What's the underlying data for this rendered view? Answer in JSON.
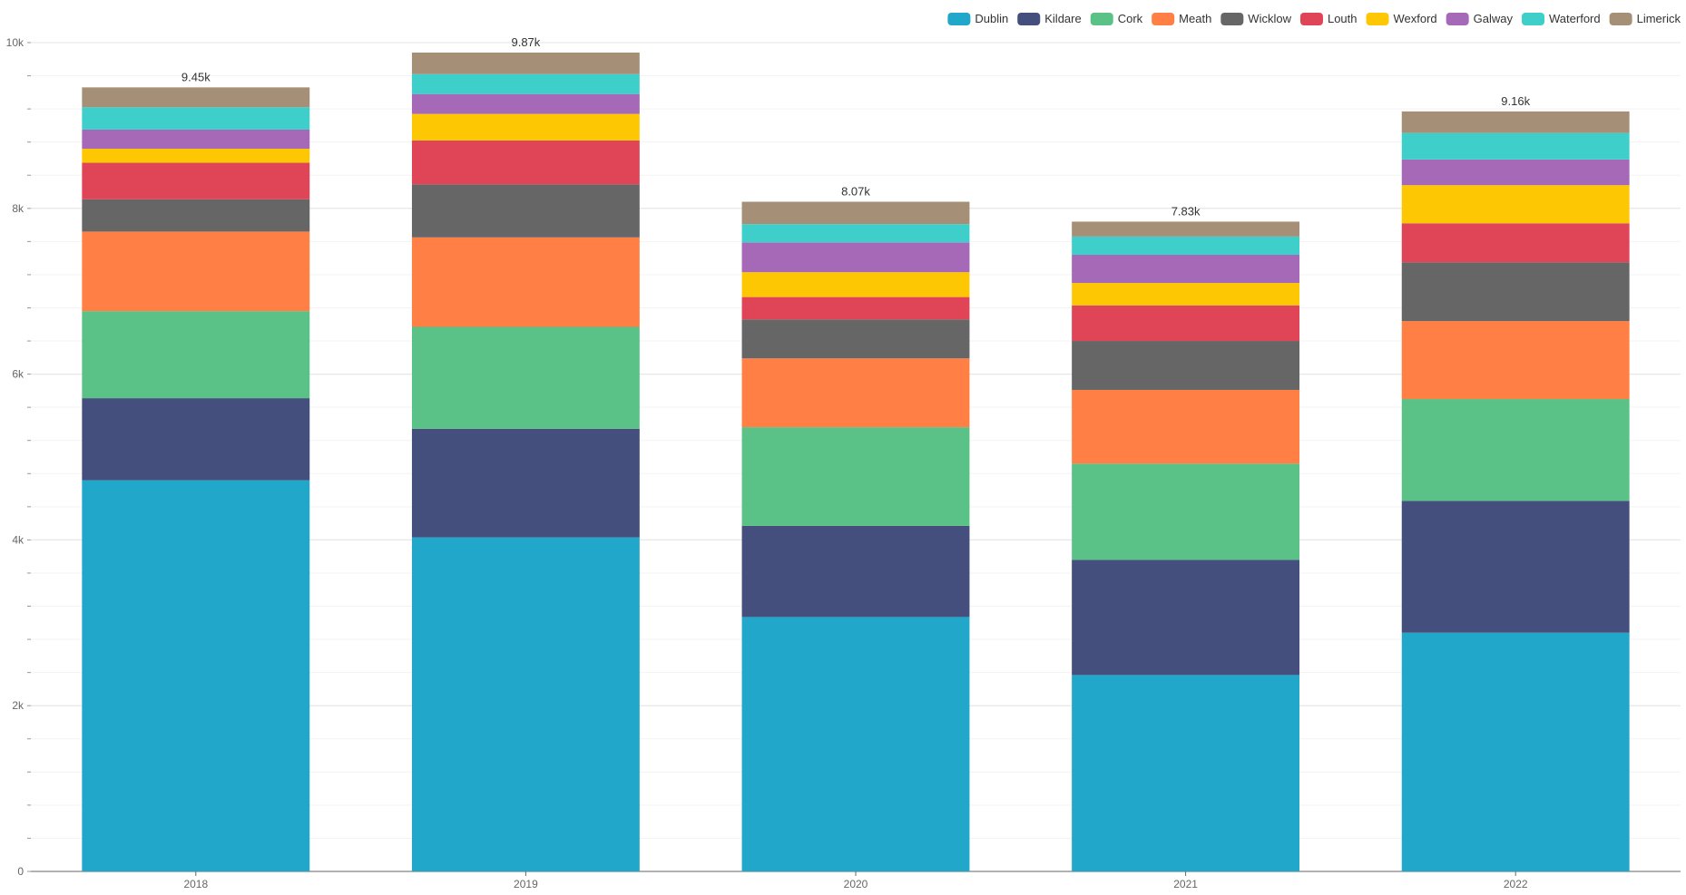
{
  "chart_data": {
    "type": "bar",
    "stacked": true,
    "title": "",
    "xlabel": "",
    "ylabel": "",
    "categories": [
      "2018",
      "2019",
      "2020",
      "2021",
      "2022"
    ],
    "ylim": [
      0,
      10000
    ],
    "y_ticks": [
      {
        "value": 0,
        "label": "0"
      },
      {
        "value": 2000,
        "label": "2k"
      },
      {
        "value": 4000,
        "label": "4k"
      },
      {
        "value": 6000,
        "label": "6k"
      },
      {
        "value": 8000,
        "label": "8k"
      },
      {
        "value": 10000,
        "label": "10k"
      }
    ],
    "minor_tick_step": 400,
    "grid": true,
    "legend_position": "top-right",
    "series": [
      {
        "name": "Dublin",
        "color": "#20a7c9",
        "values": [
          4720,
          4030,
          3070,
          2370,
          2880
        ]
      },
      {
        "name": "Kildare",
        "color": "#454f7d",
        "values": [
          990,
          1310,
          1100,
          1390,
          1590
        ]
      },
      {
        "name": "Cork",
        "color": "#5bc287",
        "values": [
          1050,
          1230,
          1190,
          1160,
          1230
        ]
      },
      {
        "name": "Meath",
        "color": "#ff7f45",
        "values": [
          960,
          1080,
          830,
          890,
          940
        ]
      },
      {
        "name": "Wicklow",
        "color": "#666666",
        "values": [
          390,
          640,
          470,
          590,
          710
        ]
      },
      {
        "name": "Louth",
        "color": "#e04457",
        "values": [
          440,
          530,
          270,
          430,
          470
        ]
      },
      {
        "name": "Wexford",
        "color": "#fdc704",
        "values": [
          170,
          320,
          300,
          270,
          460
        ]
      },
      {
        "name": "Galway",
        "color": "#a669b8",
        "values": [
          230,
          240,
          360,
          340,
          310
        ]
      },
      {
        "name": "Waterford",
        "color": "#3ecfcb",
        "values": [
          270,
          240,
          220,
          220,
          320
        ]
      },
      {
        "name": "Limerick",
        "color": "#a59077",
        "values": [
          240,
          260,
          270,
          180,
          260
        ]
      }
    ],
    "totals": [
      "9.45k",
      "9.87k",
      "8.07k",
      "7.83k",
      "9.16k"
    ]
  }
}
